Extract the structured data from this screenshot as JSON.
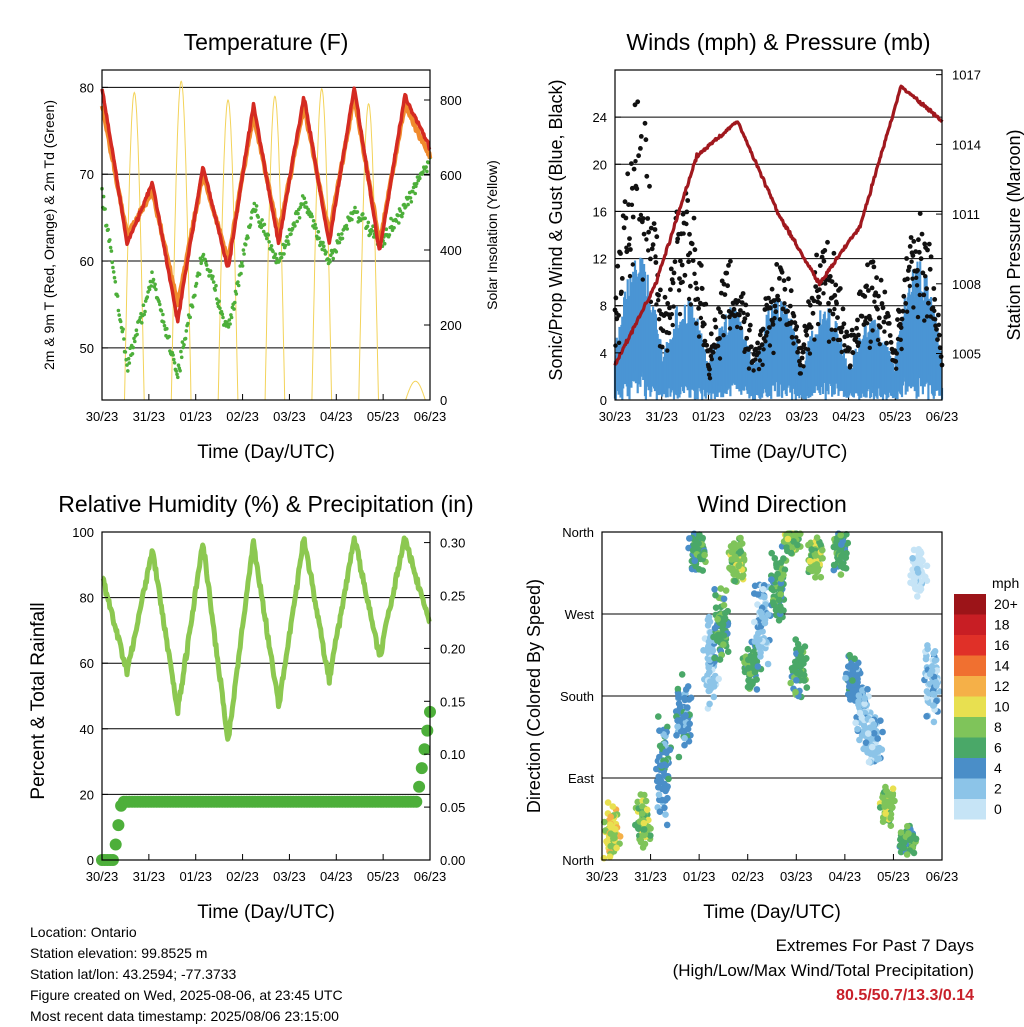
{
  "charts": {
    "temperature": {
      "title": "Temperature (F)",
      "xlabel": "Time (Day/UTC)",
      "ylabel": "2m & 9m T (Red, Orange) & 2m Td (Green)",
      "y2label": "Solar Insolation (Yellow)",
      "yticks": [
        "50",
        "60",
        "70",
        "80"
      ],
      "y2ticks": [
        "0",
        "200",
        "400",
        "600",
        "800"
      ]
    },
    "winds": {
      "title": "Winds (mph) & Pressure (mb)",
      "xlabel": "Time (Day/UTC)",
      "ylabel": "Sonic/Prop Wind & Gust (Blue, Black)",
      "y2label": "Station Pressure (Maroon)",
      "yticks": [
        "0",
        "4",
        "8",
        "12",
        "16",
        "20",
        "24"
      ],
      "y2ticks": [
        "1005",
        "1008",
        "1011",
        "1014",
        "1017"
      ]
    },
    "humidity": {
      "title": "Relative Humidity (%) & Precipitation (in)",
      "xlabel": "Time (Day/UTC)",
      "ylabel": "Percent & Total Rainfall",
      "yticks": [
        "0",
        "20",
        "40",
        "60",
        "80",
        "100"
      ],
      "y2ticks": [
        "0.00",
        "0.05",
        "0.10",
        "0.15",
        "0.20",
        "0.25",
        "0.30"
      ]
    },
    "direction": {
      "title": "Wind Direction",
      "xlabel": "Time (Day/UTC)",
      "ylabel": "Direction (Colored By Speed)",
      "yticks": [
        "North",
        "East",
        "South",
        "West",
        "North"
      ],
      "legend_title": "mph",
      "legend_labels": [
        "0",
        "2",
        "4",
        "6",
        "8",
        "10",
        "12",
        "14",
        "16",
        "18",
        "20+"
      ],
      "legend_colors": [
        "#c6e4f6",
        "#8cc4e8",
        "#4a8ec8",
        "#4aa868",
        "#7fc45a",
        "#e8e050",
        "#f5b048",
        "#f07030",
        "#e03028",
        "#c81e24",
        "#9c1418"
      ]
    }
  },
  "xticks": [
    "30/23",
    "31/23",
    "01/23",
    "02/23",
    "03/23",
    "04/23",
    "05/23",
    "06/23"
  ],
  "info": {
    "location": "Location: Ontario",
    "elevation": "Station elevation: 99.8525 m",
    "latlon": "Station lat/lon: 43.2594; -77.3733",
    "created": "Figure created on Wed, 2025-08-06, at 23:45 UTC",
    "recent": "Most recent data timestamp: 2025/08/06 23:15:00"
  },
  "extremes": {
    "title": "Extremes For Past 7 Days",
    "subtitle": "(High/Low/Max Wind/Total Precipitation)",
    "values": "80.5/50.7/13.3/0.14"
  },
  "chart_data": [
    {
      "type": "line",
      "panel": "temperature",
      "x": [
        "30/23",
        "31/23",
        "01/23",
        "02/23",
        "03/23",
        "04/23",
        "05/23",
        "06/23"
      ],
      "series_red": [
        80,
        62,
        69,
        53,
        71,
        59,
        78,
        62,
        79,
        62,
        80,
        61,
        79,
        73
      ],
      "series_orange": [
        78,
        63,
        68,
        55,
        70,
        60,
        77,
        63,
        78,
        63,
        79,
        62,
        78,
        72
      ],
      "series_green": [
        68,
        48,
        58,
        47,
        61,
        52,
        66,
        60,
        67,
        60,
        66,
        62,
        66,
        72
      ],
      "series_yellow_peaks": [
        800,
        820,
        850,
        800,
        810,
        830,
        790,
        50
      ],
      "ylim": [
        44,
        82
      ],
      "y2lim": [
        0,
        880
      ]
    },
    {
      "type": "scatter",
      "panel": "winds",
      "x": [
        "30/23",
        "31/23",
        "01/23",
        "02/23",
        "03/23",
        "04/23",
        "05/23",
        "06/23"
      ],
      "series_blue_peaks": [
        13,
        9,
        8,
        9,
        8,
        7,
        12,
        4
      ],
      "series_black_peaks": [
        25.5,
        18,
        12,
        12,
        14,
        12,
        16,
        13.5
      ],
      "series_maroon": [
        1004.5,
        1008,
        1013.5,
        1015,
        1011,
        1008,
        1010.5,
        1016.5,
        1015
      ],
      "ylim": [
        0,
        28
      ],
      "y2lim": [
        1003,
        1017.2
      ]
    },
    {
      "type": "line",
      "panel": "humidity",
      "x": [
        "30/23",
        "31/23",
        "01/23",
        "02/23",
        "03/23",
        "04/23",
        "05/23",
        "06/23"
      ],
      "series_rh": [
        87,
        57,
        95,
        45,
        97,
        36,
        97,
        47,
        98,
        55,
        98,
        62,
        98,
        72
      ],
      "series_precip": [
        0.0,
        0.055,
        0.055,
        0.055,
        0.055,
        0.055,
        0.055,
        0.14
      ],
      "ylim": [
        0,
        100
      ],
      "y2lim": [
        0,
        0.31
      ]
    },
    {
      "type": "scatter",
      "panel": "direction",
      "x": [
        "30/23",
        "31/23",
        "01/23",
        "02/23",
        "03/23",
        "04/23",
        "05/23",
        "06/23"
      ],
      "yticks": [
        "North",
        "East",
        "South",
        "West",
        "North"
      ],
      "ylim": [
        0,
        360
      ]
    }
  ]
}
